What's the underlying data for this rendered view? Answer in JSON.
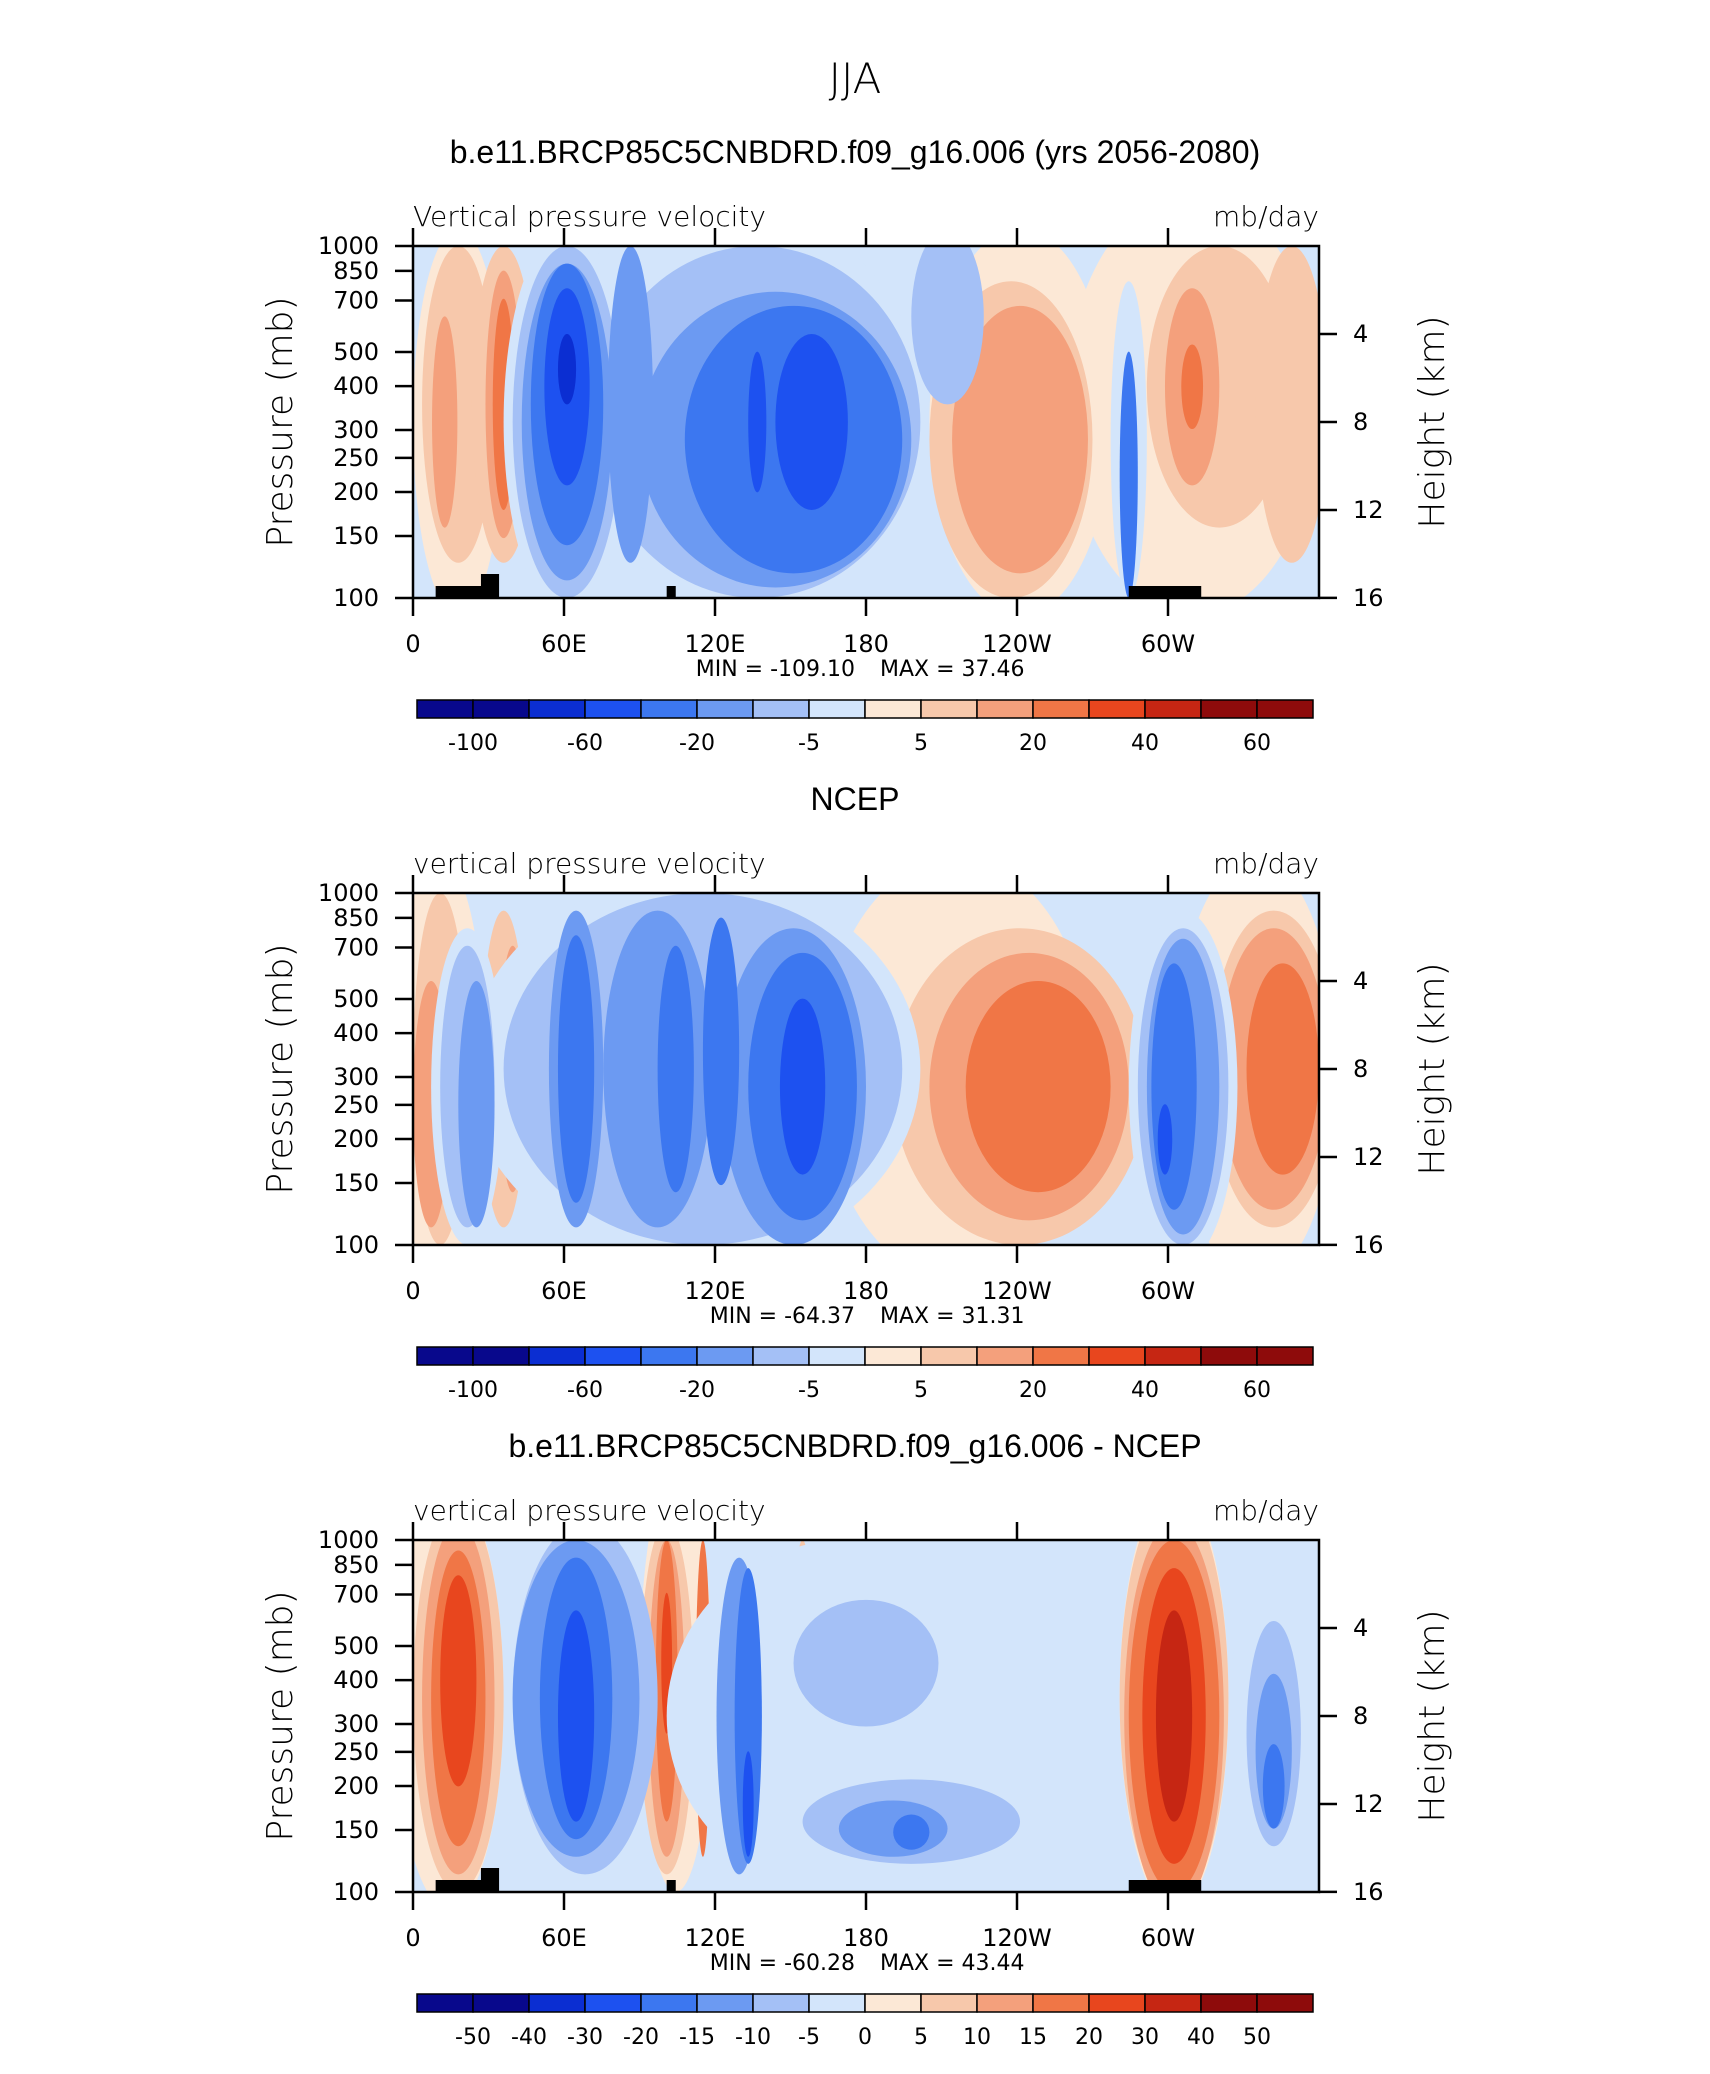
{
  "page_title": "JJA",
  "colors": {
    "cb1": [
      "#08088c",
      "#0b2ed2",
      "#1d51f0",
      "#3c77f0",
      "#6c9af2",
      "#a4c0f6",
      "#d3e5fb",
      "#fce8d6",
      "#f7c8ab",
      "#f4a07c",
      "#f07646",
      "#e8461e",
      "#c62613",
      "#8e0b0b"
    ],
    "cb_diff": [
      "#08088c",
      "#0b2ed2",
      "#1d51f0",
      "#3c77f0",
      "#6c9af2",
      "#a4c0f6",
      "#d3e5fb",
      "#fce8d6",
      "#f7c8ab",
      "#f4a07c",
      "#f07646",
      "#e8461e",
      "#c62613",
      "#8e0b0b"
    ],
    "terrain": "#000000"
  },
  "chart_data": [
    {
      "type": "heatmap",
      "title": "b.e11.BRCP85C5CNBDRD.f09_g16.006 (yrs 2056-2080)",
      "left_label": "Vertical pressure velocity",
      "right_label": "mb/day",
      "ylabel": "Pressure (mb)",
      "y2label": "Height (km)",
      "x_ticks": [
        "0",
        "60E",
        "120E",
        "180",
        "120W",
        "60W"
      ],
      "x_tick_values": [
        0,
        60,
        120,
        180,
        240,
        300
      ],
      "xlim": [
        0,
        360
      ],
      "y_ticks": [
        "100",
        "150",
        "200",
        "250",
        "300",
        "400",
        "500",
        "700",
        "850",
        "1000"
      ],
      "y_tick_values": [
        100,
        150,
        200,
        250,
        300,
        400,
        500,
        700,
        850,
        1000
      ],
      "ylim": [
        1000,
        100
      ],
      "y_scale": "log",
      "y2_ticks": [
        "4",
        "8",
        "12",
        "16"
      ],
      "y2_tick_values": [
        4,
        8,
        12,
        16
      ],
      "min_label": "MIN = -109.10",
      "max_label": "MAX = 37.46",
      "min": -109.1,
      "max": 37.46,
      "colorbar_labels": [
        "-100",
        "-60",
        "-20",
        "-5",
        "5",
        "20",
        "40",
        "60"
      ],
      "colorbar_levels": [
        -100,
        -80,
        -60,
        -40,
        -20,
        -10,
        -5,
        0,
        5,
        10,
        20,
        30,
        40,
        60
      ]
    },
    {
      "type": "heatmap",
      "title": "NCEP",
      "left_label": "vertical pressure velocity",
      "right_label": "mb/day",
      "ylabel": "Pressure (mb)",
      "y2label": "Height (km)",
      "x_ticks": [
        "0",
        "60E",
        "120E",
        "180",
        "120W",
        "60W"
      ],
      "x_tick_values": [
        0,
        60,
        120,
        180,
        240,
        300
      ],
      "xlim": [
        0,
        360
      ],
      "y_ticks": [
        "100",
        "150",
        "200",
        "250",
        "300",
        "400",
        "500",
        "700",
        "850",
        "1000"
      ],
      "y_tick_values": [
        100,
        150,
        200,
        250,
        300,
        400,
        500,
        700,
        850,
        1000
      ],
      "ylim": [
        1000,
        100
      ],
      "y_scale": "log",
      "y2_ticks": [
        "4",
        "8",
        "12",
        "16"
      ],
      "y2_tick_values": [
        4,
        8,
        12,
        16
      ],
      "min_label": "MIN = -64.37",
      "max_label": "MAX = 31.31",
      "min": -64.37,
      "max": 31.31,
      "colorbar_labels": [
        "-100",
        "-60",
        "-20",
        "-5",
        "5",
        "20",
        "40",
        "60"
      ],
      "colorbar_levels": [
        -100,
        -80,
        -60,
        -40,
        -20,
        -10,
        -5,
        0,
        5,
        10,
        20,
        30,
        40,
        60
      ]
    },
    {
      "type": "heatmap",
      "title": "b.e11.BRCP85C5CNBDRD.f09_g16.006 - NCEP",
      "left_label": "vertical pressure velocity",
      "right_label": "mb/day",
      "ylabel": "Pressure (mb)",
      "y2label": "Height (km)",
      "x_ticks": [
        "0",
        "60E",
        "120E",
        "180",
        "120W",
        "60W"
      ],
      "x_tick_values": [
        0,
        60,
        120,
        180,
        240,
        300
      ],
      "xlim": [
        0,
        360
      ],
      "y_ticks": [
        "100",
        "150",
        "200",
        "250",
        "300",
        "400",
        "500",
        "700",
        "850",
        "1000"
      ],
      "y_tick_values": [
        100,
        150,
        200,
        250,
        300,
        400,
        500,
        700,
        850,
        1000
      ],
      "ylim": [
        1000,
        100
      ],
      "y_scale": "log",
      "y2_ticks": [
        "4",
        "8",
        "12",
        "16"
      ],
      "y2_tick_values": [
        4,
        8,
        12,
        16
      ],
      "min_label": "MIN = -60.28",
      "max_label": "MAX = 43.44",
      "min": -60.28,
      "max": 43.44,
      "colorbar_labels": [
        "-50",
        "-40",
        "-30",
        "-20",
        "-15",
        "-10",
        "-5",
        "0",
        "5",
        "10",
        "15",
        "20",
        "30",
        "40",
        "50"
      ],
      "colorbar_levels": [
        -50,
        -40,
        -30,
        -20,
        -15,
        -10,
        -5,
        0,
        5,
        10,
        15,
        20,
        30,
        40,
        50
      ]
    }
  ]
}
